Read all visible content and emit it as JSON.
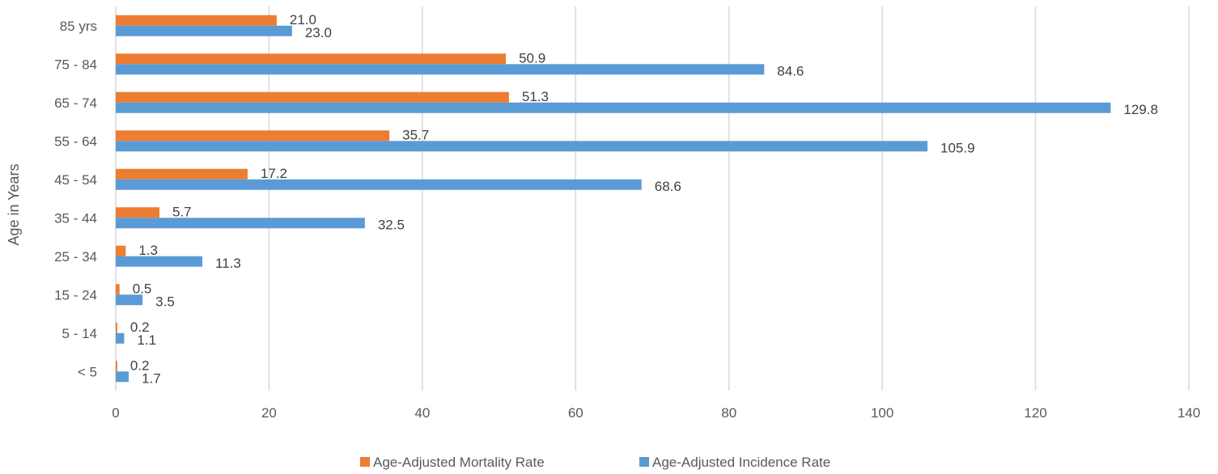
{
  "chart_data": {
    "type": "bar",
    "orientation": "horizontal",
    "title": "",
    "xlabel": "",
    "ylabel": "Age in Years",
    "xlim": [
      0,
      140
    ],
    "x_ticks": [
      0,
      20,
      40,
      60,
      80,
      100,
      120,
      140
    ],
    "grid": "vertical",
    "legend_position": "bottom",
    "categories": [
      "85 yrs",
      "75 - 84",
      "65 - 74",
      "55 - 64",
      "45 - 54",
      "35 - 44",
      "25 - 34",
      "15 - 24",
      "5 - 14",
      "< 5"
    ],
    "series": [
      {
        "name": "Age-Adjusted Mortality Rate",
        "color": "#ED7D31",
        "values": [
          21.0,
          50.9,
          51.3,
          35.7,
          17.2,
          5.7,
          1.3,
          0.5,
          0.2,
          0.2
        ],
        "labels": [
          "21.0",
          "50.9",
          "51.3",
          "35.7",
          "17.2",
          "5.7",
          "1.3",
          "0.5",
          "0.2",
          "0.2"
        ]
      },
      {
        "name": "Age-Adjusted Incidence Rate",
        "color": "#5B9BD5",
        "values": [
          23.0,
          84.6,
          129.8,
          105.9,
          68.6,
          32.5,
          11.3,
          3.5,
          1.1,
          1.7
        ],
        "labels": [
          "23.0",
          "84.6",
          "129.8",
          "105.9",
          "68.6",
          "32.5",
          "11.3",
          "3.5",
          "1.1",
          "1.7"
        ]
      }
    ]
  }
}
